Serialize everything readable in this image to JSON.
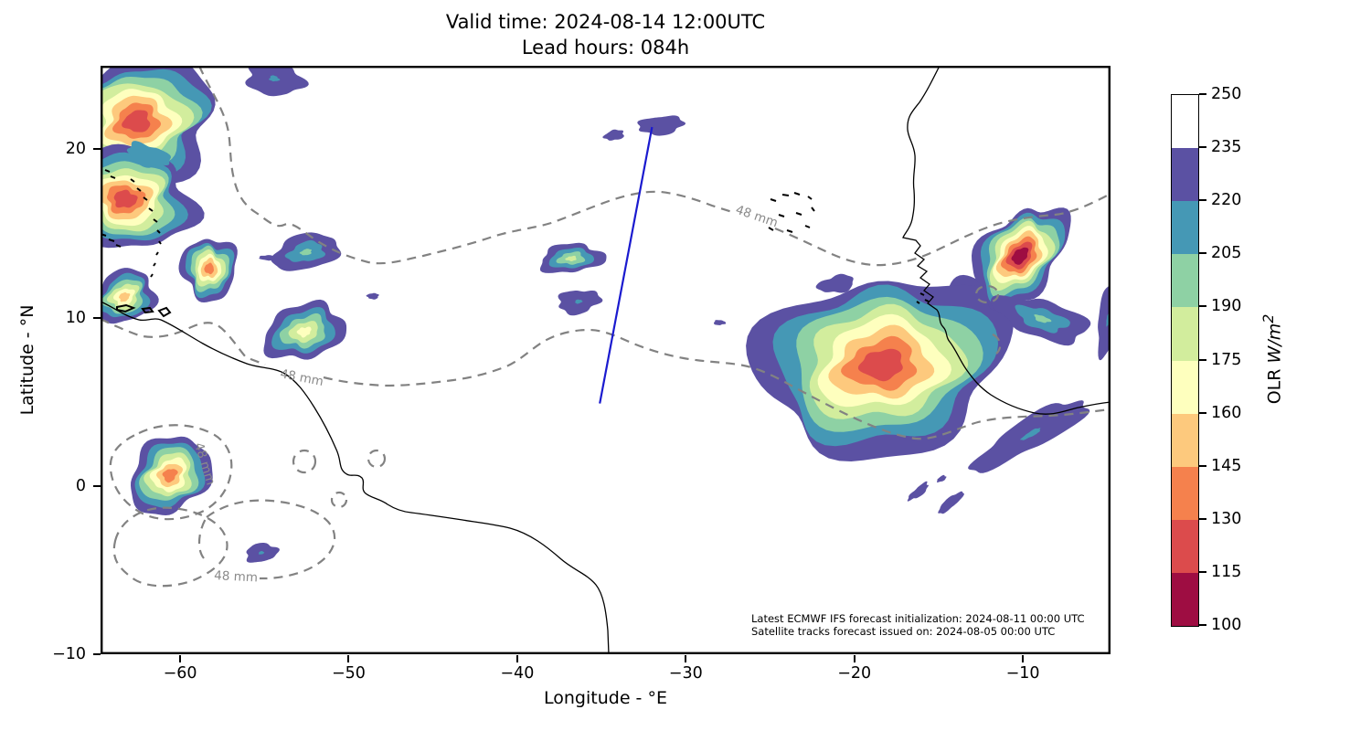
{
  "header": {
    "line1": "Valid time: 2024-08-14 12:00UTC",
    "line2": "Lead hours: 084h"
  },
  "chart_data": {
    "type": "filled-contour-map",
    "title": "Valid time: 2024-08-14 12:00UTC — Lead hours: 084h",
    "x_axis": {
      "label": "Longitude - °E",
      "range": [
        -64.72,
        -4.8
      ],
      "ticks": [
        {
          "v": -60,
          "label": "−60"
        },
        {
          "v": -50,
          "label": "−50"
        },
        {
          "v": -40,
          "label": "−40"
        },
        {
          "v": -30,
          "label": "−30"
        },
        {
          "v": -20,
          "label": "−20"
        },
        {
          "v": -10,
          "label": "−10"
        }
      ]
    },
    "y_axis": {
      "label": "Latitude - °N",
      "range": [
        -9.98,
        24.94
      ],
      "ticks": [
        {
          "v": 20,
          "label": "20"
        },
        {
          "v": 10,
          "label": "10"
        },
        {
          "v": 0,
          "label": "0"
        },
        {
          "v": -10,
          "label": "−10"
        }
      ]
    },
    "colorbar": {
      "label_prefix": "OLR ",
      "label_math": "W/m",
      "label_sup": "2",
      "min": 100,
      "max": 250,
      "step": 15,
      "ticks": [
        "100",
        "115",
        "130",
        "145",
        "160",
        "175",
        "190",
        "205",
        "220",
        "235",
        "250"
      ],
      "colors_bottom_to_top": [
        "#9e0d42",
        "#dc4b4c",
        "#f5814d",
        "#fdc97d",
        "#feffbe",
        "#d2ed9d",
        "#8ed1a4",
        "#4598b5",
        "#5b51a3",
        "#ffffff"
      ]
    },
    "palette": {
      "100": "#9e0d42",
      "115": "#dc4b4c",
      "130": "#f5814d",
      "145": "#fdc97d",
      "160": "#feffbe",
      "175": "#d2ed9d",
      "190": "#8ed1a4",
      "205": "#4598b5",
      "220": "#5b51a3",
      "235": "#ffffff"
    },
    "contour_label": "48 mm",
    "track": {
      "color": "#1a1acf",
      "points": [
        [
          -32.0,
          21.3
        ],
        [
          -35.1,
          4.9
        ]
      ]
    },
    "features": [
      {
        "name": "caribbean-mcs-north",
        "lon": -62.55,
        "lat": 21.63,
        "rx": 4.6,
        "ry": 3.8,
        "rot": -8,
        "min_olr": 115,
        "seed": 3
      },
      {
        "name": "caribbean-mcs-mid",
        "lon": -63.26,
        "lat": 17.02,
        "rx": 4.0,
        "ry": 3.0,
        "rot": 6,
        "min_olr": 115,
        "seed": 7
      },
      {
        "name": "antilles-cell-southeast",
        "lon": -58.27,
        "lat": 12.9,
        "rx": 1.65,
        "ry": 1.85,
        "rot": 0,
        "min_olr": 130,
        "seed": 11
      },
      {
        "name": "antilles-cell-southwest",
        "lon": -63.31,
        "lat": 11.22,
        "rx": 1.9,
        "ry": 1.5,
        "rot": -30,
        "min_olr": 145,
        "seed": 13
      },
      {
        "name": "caribbean-top-edge-cell",
        "lon": -54.42,
        "lat": 24.18,
        "rx": 1.7,
        "ry": 1.0,
        "rot": 10,
        "min_olr": 205,
        "seed": 17
      },
      {
        "name": "caribbean-inner-warm-patch",
        "lon": -61.9,
        "lat": 19.63,
        "rx": 1.3,
        "ry": 0.62,
        "rot": 15,
        "flat": 205,
        "seed": 19
      },
      {
        "name": "atlantic-west-cell",
        "lon": -52.52,
        "lat": 13.88,
        "rx": 2.0,
        "ry": 1.05,
        "rot": -12,
        "min_olr": 190,
        "seed": 23
      },
      {
        "name": "atlantic-west-speck",
        "lon": -54.85,
        "lat": 13.55,
        "rx": 0.45,
        "ry": 0.15,
        "rot": 0,
        "min_olr": 220,
        "seed": 29
      },
      {
        "name": "atlantic-west-cluster",
        "lon": -52.63,
        "lat": 9.16,
        "rx": 2.45,
        "ry": 1.6,
        "rot": -15,
        "min_olr": 160,
        "seed": 31
      },
      {
        "name": "atlantic-west-dot",
        "lon": -48.56,
        "lat": 11.27,
        "rx": 0.35,
        "ry": 0.18,
        "rot": 0,
        "min_olr": 220,
        "seed": 37
      },
      {
        "name": "mid-atlantic-cell-north",
        "lon": -36.79,
        "lat": 13.5,
        "rx": 1.9,
        "ry": 0.85,
        "rot": -5,
        "min_olr": 175,
        "seed": 41
      },
      {
        "name": "mid-atlantic-cell-south",
        "lon": -36.36,
        "lat": 10.95,
        "rx": 1.25,
        "ry": 0.7,
        "rot": -8,
        "min_olr": 205,
        "seed": 43
      },
      {
        "name": "track-start-speck-west",
        "lon": -34.24,
        "lat": 20.82,
        "rx": 0.6,
        "ry": 0.3,
        "rot": -10,
        "min_olr": 220,
        "seed": 47
      },
      {
        "name": "track-start-cell",
        "lon": -31.48,
        "lat": 21.41,
        "rx": 1.35,
        "ry": 0.55,
        "rot": -5,
        "min_olr": 220,
        "seed": 53
      },
      {
        "name": "west-africa-coastal-band",
        "lon": -12.87,
        "lat": 10.3,
        "rx": 2.2,
        "ry": 2.0,
        "rot": 0,
        "min_olr": 205,
        "seed": 59
      },
      {
        "name": "east-atlantic-itcz-complex",
        "lon": -18.35,
        "lat": 7.21,
        "rx": 7.5,
        "ry": 5.2,
        "rot": -10,
        "min_olr": 115,
        "seed": 61
      },
      {
        "name": "senegal-mauritania-mcs",
        "lon": -10.16,
        "lat": 13.66,
        "rx": 3.4,
        "ry": 2.2,
        "rot": -48,
        "min_olr": 100,
        "seed": 67
      },
      {
        "name": "sahel-east-arm",
        "lon": -8.86,
        "lat": 9.92,
        "rx": 2.9,
        "ry": 1.1,
        "rot": 17,
        "min_olr": 190,
        "seed": 71
      },
      {
        "name": "gulf-of-guinea-streak",
        "lon": -9.51,
        "lat": 3.09,
        "rx": 3.9,
        "ry": 0.9,
        "rot": -30,
        "min_olr": 205,
        "seed": 73
      },
      {
        "name": "equatorial-streak-west",
        "lon": -16.18,
        "lat": -0.33,
        "rx": 0.75,
        "ry": 0.25,
        "rot": -40,
        "min_olr": 220,
        "seed": 79
      },
      {
        "name": "equatorial-streak-east",
        "lon": -14.28,
        "lat": -0.98,
        "rx": 0.95,
        "ry": 0.28,
        "rot": -40,
        "min_olr": 220,
        "seed": 83
      },
      {
        "name": "equatorial-speck",
        "lon": -14.82,
        "lat": 0.43,
        "rx": 0.3,
        "ry": 0.15,
        "rot": -30,
        "min_olr": 220,
        "seed": 89
      },
      {
        "name": "itcz-west-speck",
        "lon": -21.06,
        "lat": 11.98,
        "rx": 1.1,
        "ry": 0.5,
        "rot": -10,
        "min_olr": 220,
        "seed": 97
      },
      {
        "name": "mid-atlantic-speck",
        "lon": -28.0,
        "lat": 9.7,
        "rx": 0.35,
        "ry": 0.15,
        "rot": 0,
        "min_olr": 220,
        "seed": 101
      },
      {
        "name": "right-edge-strip",
        "lon": -4.94,
        "lat": 9.86,
        "rx": 0.6,
        "ry": 2.1,
        "rot": 8,
        "min_olr": 205,
        "seed": 103
      },
      {
        "name": "guiana-equator-cell",
        "lon": -60.6,
        "lat": 0.65,
        "rx": 2.6,
        "ry": 2.1,
        "rot": -40,
        "min_olr": 130,
        "seed": 107
      },
      {
        "name": "amazon-cell",
        "lon": -55.18,
        "lat": -3.96,
        "rx": 0.95,
        "ry": 0.55,
        "rot": -10,
        "min_olr": 205,
        "seed": 109
      }
    ],
    "annotations": [
      "Latest ECMWF IFS forecast initialization: 2024-08-11 00:00 UTC",
      "Satellite tracks forecast issued on: 2024-08-05 00:00 UTC"
    ]
  }
}
